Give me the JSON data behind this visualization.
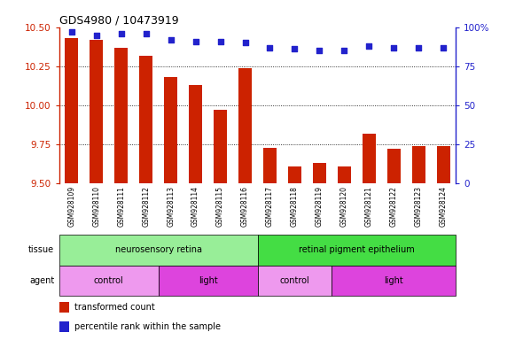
{
  "title": "GDS4980 / 10473919",
  "samples": [
    "GSM928109",
    "GSM928110",
    "GSM928111",
    "GSM928112",
    "GSM928113",
    "GSM928114",
    "GSM928115",
    "GSM928116",
    "GSM928117",
    "GSM928118",
    "GSM928119",
    "GSM928120",
    "GSM928121",
    "GSM928122",
    "GSM928123",
    "GSM928124"
  ],
  "red_values": [
    10.43,
    10.42,
    10.37,
    10.32,
    10.18,
    10.13,
    9.97,
    10.24,
    9.73,
    9.61,
    9.63,
    9.61,
    9.82,
    9.72,
    9.74,
    9.74
  ],
  "blue_values": [
    97,
    95,
    96,
    96,
    92,
    91,
    91,
    90,
    87,
    86,
    85,
    85,
    88,
    87,
    87,
    87
  ],
  "ylim_left": [
    9.5,
    10.5
  ],
  "ylim_right": [
    0,
    100
  ],
  "yticks_left": [
    9.5,
    9.75,
    10.0,
    10.25,
    10.5
  ],
  "yticks_right": [
    0,
    25,
    50,
    75,
    100
  ],
  "tissue_groups": [
    {
      "label": "neurosensory retina",
      "start": 0,
      "end": 8,
      "color": "#98EE98"
    },
    {
      "label": "retinal pigment epithelium",
      "start": 8,
      "end": 16,
      "color": "#44DD44"
    }
  ],
  "agent_groups": [
    {
      "label": "control",
      "start": 0,
      "end": 4,
      "color": "#EE99EE"
    },
    {
      "label": "light",
      "start": 4,
      "end": 8,
      "color": "#DD44DD"
    },
    {
      "label": "control",
      "start": 8,
      "end": 11,
      "color": "#EE99EE"
    },
    {
      "label": "light",
      "start": 11,
      "end": 16,
      "color": "#DD44DD"
    }
  ],
  "bar_color": "#CC2200",
  "dot_color": "#2222CC",
  "bg_color": "#FFFFFF",
  "left_axis_color": "#CC2200",
  "right_axis_color": "#2222CC",
  "grid_yticks": [
    9.75,
    10.0,
    10.25
  ]
}
